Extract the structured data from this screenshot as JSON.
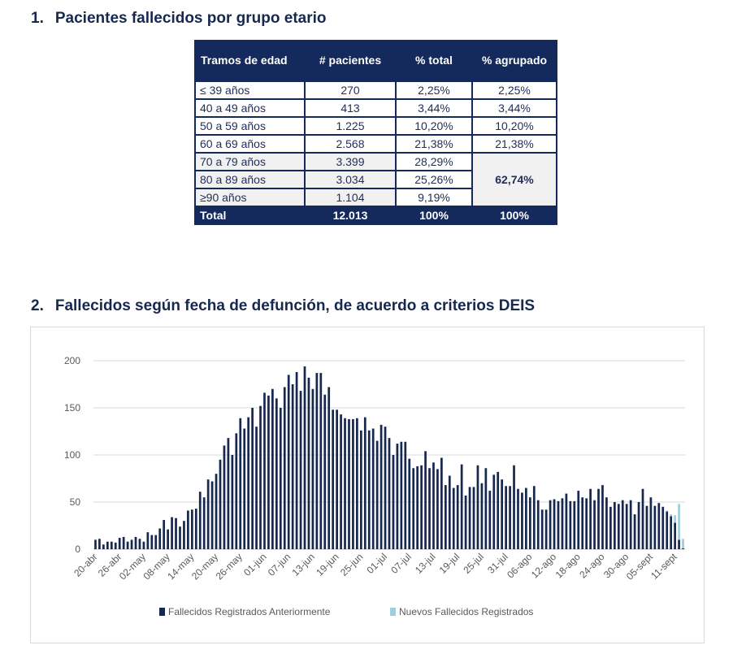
{
  "section1": {
    "number": "1.",
    "title": "Pacientes fallecidos por grupo etario"
  },
  "table": {
    "headers": [
      "Tramos de edad",
      "# pacientes",
      "% total",
      "% agrupado"
    ],
    "rows": [
      {
        "range": "≤ 39 años",
        "count": "270",
        "pct": "2,25%",
        "grouped": "2,25%"
      },
      {
        "range": "40 a 49 años",
        "count": "413",
        "pct": "3,44%",
        "grouped": "3,44%"
      },
      {
        "range": "50 a 59 años",
        "count": "1.225",
        "pct": "10,20%",
        "grouped": "10,20%"
      },
      {
        "range": "60 a 69 años",
        "count": "2.568",
        "pct": "21,38%",
        "grouped": "21,38%"
      },
      {
        "range": "70 a 79 años",
        "count": "3.399",
        "pct": "28,29%"
      },
      {
        "range": "80 a 89 años",
        "count": "3.034",
        "pct": "25,26%"
      },
      {
        "range": "≥90 años",
        "count": "1.104",
        "pct": "9,19%"
      }
    ],
    "merged_grouped": "62,74%",
    "total": {
      "label": "Total",
      "count": "12.013",
      "pct": "100%",
      "grouped": "100%"
    }
  },
  "section2": {
    "number": "2.",
    "title": "Fallecidos según fecha de defunción, de acuerdo a criterios DEIS"
  },
  "colors": {
    "navy": "#14295c",
    "previous_series": "#17284f",
    "new_series": "#9fcfdc",
    "grid": "#d9d9d9"
  },
  "chart_data": {
    "type": "bar",
    "stacked": true,
    "x_start": "20-abr",
    "x_end": "11-sept",
    "x_tick_labels": [
      "20-abr",
      "26-abr",
      "02-may",
      "08-may",
      "14-may",
      "20-may",
      "26-may",
      "01-jun",
      "07-jun",
      "13-jun",
      "19-jun",
      "25-jun",
      "01-jul",
      "07-jul",
      "13-jul",
      "19-jul",
      "25-jul",
      "31-jul",
      "06-ago",
      "12-ago",
      "18-ago",
      "24-ago",
      "30-ago",
      "05-sept",
      "11-sept"
    ],
    "y_ticks": [
      0,
      50,
      100,
      150,
      200
    ],
    "ylim": [
      0,
      200
    ],
    "grid": true,
    "legend_position": "bottom",
    "series": [
      {
        "name": "Fallecidos Registrados Anteriormente",
        "values": [
          10,
          11,
          5,
          8,
          8,
          7,
          12,
          13,
          8,
          10,
          13,
          11,
          8,
          18,
          15,
          15,
          22,
          31,
          21,
          34,
          33,
          24,
          30,
          41,
          42,
          43,
          61,
          55,
          74,
          72,
          80,
          95,
          110,
          118,
          100,
          123,
          139,
          128,
          140,
          150,
          130,
          152,
          166,
          163,
          170,
          160,
          150,
          172,
          185,
          175,
          188,
          168,
          194,
          182,
          170,
          187,
          187,
          164,
          172,
          148,
          148,
          143,
          139,
          138,
          138,
          139,
          126,
          140,
          126,
          128,
          115,
          132,
          130,
          118,
          100,
          112,
          114,
          114,
          96,
          86,
          88,
          89,
          104,
          86,
          92,
          85,
          97,
          68,
          78,
          65,
          68,
          90,
          57,
          66,
          66,
          89,
          70,
          86,
          62,
          79,
          82,
          74,
          67,
          67,
          89,
          64,
          60,
          65,
          55,
          67,
          52,
          42,
          42,
          52,
          53,
          51,
          54,
          59,
          51,
          51,
          62,
          55,
          54,
          64,
          52,
          64,
          68,
          55,
          45,
          50,
          48,
          52,
          48,
          52,
          37,
          50,
          64,
          46,
          55,
          46,
          49,
          45,
          40,
          35,
          28,
          10,
          1
        ]
      },
      {
        "name": "Nuevos Fallecidos Registrados",
        "values": [
          0,
          0,
          0,
          0,
          0,
          0,
          0,
          0,
          0,
          0,
          0,
          0,
          0,
          0,
          0,
          0,
          0,
          0,
          0,
          0,
          0,
          0,
          0,
          0,
          0,
          0,
          0,
          0,
          0,
          0,
          0,
          0,
          0,
          0,
          0,
          0,
          0,
          0,
          0,
          0,
          0,
          0,
          0,
          0,
          0,
          0,
          0,
          0,
          0,
          0,
          0,
          0,
          0,
          0,
          0,
          0,
          0,
          0,
          0,
          0,
          0,
          0,
          0,
          0,
          0,
          0,
          0,
          0,
          0,
          0,
          0,
          0,
          0,
          0,
          0,
          0,
          0,
          0,
          0,
          0,
          0,
          0,
          0,
          0,
          0,
          0,
          0,
          0,
          0,
          0,
          0,
          0,
          0,
          0,
          0,
          0,
          0,
          0,
          0,
          0,
          0,
          0,
          0,
          0,
          0,
          0,
          0,
          0,
          0,
          0,
          0,
          0,
          0,
          0,
          0,
          0,
          0,
          0,
          0,
          0,
          0,
          0,
          0,
          0,
          0,
          0,
          0,
          0,
          0,
          0,
          0,
          0,
          0,
          0,
          0,
          0,
          0,
          0,
          0,
          0,
          0,
          0,
          1,
          2,
          8,
          38,
          10
        ]
      }
    ]
  }
}
